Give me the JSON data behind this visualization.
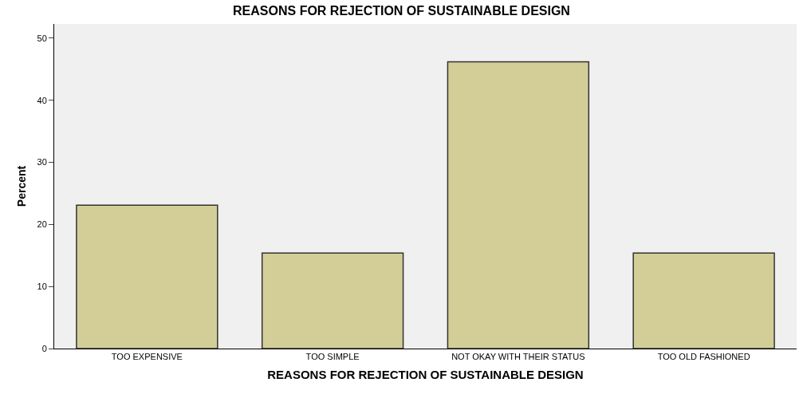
{
  "chart_data": {
    "type": "bar",
    "title": "REASONS FOR REJECTION OF SUSTAINABLE DESIGN",
    "xlabel": "REASONS FOR REJECTION OF SUSTAINABLE DESIGN",
    "ylabel": "Percent",
    "categories": [
      "TOO EXPENSIVE",
      "TOO SIMPLE",
      "NOT OKAY WITH THEIR STATUS",
      "TOO OLD FASHIONED"
    ],
    "values": [
      23.1,
      15.4,
      46.2,
      15.4
    ],
    "color": "#d3ce97",
    "ylim": [
      0,
      52.3
    ],
    "yticks": [
      0,
      10,
      20,
      30,
      40,
      50
    ],
    "grid": false,
    "legend": false
  }
}
